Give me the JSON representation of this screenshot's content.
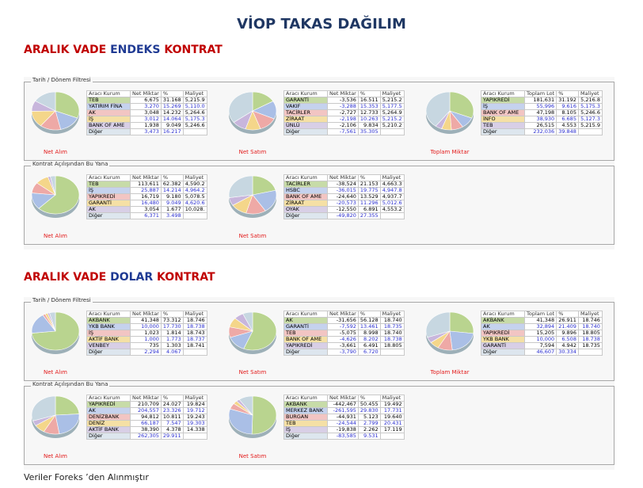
{
  "title": "VİOP TAKAS DAĞILIM",
  "footer": "Veriler Foreks ’den Alınmıştır",
  "sections": [
    {
      "heading": {
        "w1": "ARALIK VADE",
        "w2": "ENDEKS",
        "w3": "KONTRAT"
      },
      "groups": [
        {
          "legend": "Tarih / Dönem Filtresi",
          "cells": [
            {
              "label": "Net Alım",
              "headers": [
                "Aracı Kurum",
                "Net Miktar",
                "%",
                "Maliyet"
              ],
              "rows": [
                [
                  "TEB",
                  "6,675",
                  "31.168",
                  "5,215.9"
                ],
                [
                  "YATIRIM FİNA",
                  "3,270",
                  "15.269",
                  "5,110.0"
                ],
                [
                  "AK",
                  "3,048",
                  "14.232",
                  "5,264.6"
                ],
                [
                  "İŞ",
                  "3,012",
                  "14.064",
                  "5,175.3"
                ],
                [
                  "BANK OF AME",
                  "1,938",
                  "9.049",
                  "5,246.6"
                ],
                [
                  "Diğer",
                  "3,473",
                  "16.217",
                  ""
                ]
              ],
              "slices": [
                31.168,
                15.269,
                14.232,
                14.064,
                9.049,
                16.217
              ]
            },
            {
              "label": "Net Satım",
              "headers": [
                "Aracı Kurum",
                "Net Miktar",
                "%",
                "Maliyet"
              ],
              "rows": [
                [
                  "GARANTİ",
                  "-3,536",
                  "16.511",
                  "5,215.2"
                ],
                [
                  "VAKIF",
                  "-3,288",
                  "15.353",
                  "5,177.5"
                ],
                [
                  "TACİRLER",
                  "-2,727",
                  "12.733",
                  "5,264.9"
                ],
                [
                  "ZİRAAT",
                  "-2,198",
                  "10.263",
                  "5,215.2"
                ],
                [
                  "ÜNLÜ",
                  "-2,106",
                  "9.834",
                  "5,210.2"
                ],
                [
                  "Diğer",
                  "-7,561",
                  "35.305",
                  ""
                ]
              ],
              "slices": [
                16.511,
                15.353,
                12.733,
                10.263,
                9.834,
                35.305
              ]
            },
            {
              "label": "Toplam Miktar",
              "headers": [
                "Aracı Kurum",
                "Toplam Lot",
                "%",
                "Maliyet"
              ],
              "rows": [
                [
                  "YAPIKREDİ",
                  "181,631",
                  "31.192",
                  "5,216.8"
                ],
                [
                  "İŞ",
                  "55,996",
                  "9.616",
                  "5,175.3"
                ],
                [
                  "BANK OF AME",
                  "47,198",
                  "8.105",
                  "5,246.6"
                ],
                [
                  "İNFO",
                  "38,930",
                  "6.685",
                  "5,127.3"
                ],
                [
                  "TEB",
                  "26,515",
                  "4.553",
                  "5,215.9"
                ],
                [
                  "Diğer",
                  "232,036",
                  "39.848",
                  ""
                ]
              ],
              "slices": [
                31.192,
                9.616,
                8.105,
                6.685,
                4.553,
                39.848
              ]
            }
          ]
        },
        {
          "legend": "Kontrat Açılışından Bu Yana",
          "cells": [
            {
              "label": "Net Alım",
              "headers": [
                "Aracı Kurum",
                "Net Miktar",
                "%",
                "Maliyet"
              ],
              "rows": [
                [
                  "TEB",
                  "113,611",
                  "62.382",
                  "4,590.2"
                ],
                [
                  "İŞ",
                  "25,887",
                  "14.214",
                  "4,964.2"
                ],
                [
                  "YAPIKREDİ",
                  "16,719",
                  "9.180",
                  "5,078.5"
                ],
                [
                  "GARANTİ",
                  "16,480",
                  "9.049",
                  "4,620.6"
                ],
                [
                  "AK",
                  "3,054",
                  "1.677",
                  "10,028."
                ],
                [
                  "Diğer",
                  "6,371",
                  "3.498",
                  ""
                ]
              ],
              "slices": [
                62.382,
                14.214,
                9.18,
                9.049,
                1.677,
                3.498
              ]
            },
            {
              "label": "Net Satım",
              "headers": [
                "Aracı Kurum",
                "Net Miktar",
                "%",
                "Maliyet"
              ],
              "rows": [
                [
                  "TACİRLER",
                  "-38,524",
                  "21.153",
                  "4,663.3"
                ],
                [
                  "HSBC",
                  "-36,015",
                  "19.775",
                  "4,947.8"
                ],
                [
                  "BANK OF AME",
                  "-24,640",
                  "13.529",
                  "4,937.7"
                ],
                [
                  "ZİRAAT",
                  "-20,573",
                  "11.296",
                  "5,012.6"
                ],
                [
                  "OYAK",
                  "-12,550",
                  "6.891",
                  "4,553.2"
                ],
                [
                  "Diğer",
                  "-49,820",
                  "27.355",
                  ""
                ]
              ],
              "slices": [
                21.153,
                19.775,
                13.529,
                11.296,
                6.891,
                27.355
              ]
            }
          ]
        }
      ]
    },
    {
      "heading": {
        "w1": "ARALIK VADE",
        "w2": "DOLAR",
        "w3": "KONTRAT"
      },
      "groups": [
        {
          "legend": "Tarih / Dönem Filtresi",
          "cells": [
            {
              "label": "Net Alım",
              "headers": [
                "Aracı Kurum",
                "Net Miktar",
                "%",
                "Maliyet"
              ],
              "rows": [
                [
                  "AKBANK",
                  "41,348",
                  "73.312",
                  "18.746"
                ],
                [
                  "YKB BANK",
                  "10,000",
                  "17.730",
                  "18.738"
                ],
                [
                  "İŞ",
                  "1,023",
                  "1.814",
                  "18.743"
                ],
                [
                  "AKTİF BANK",
                  "1,000",
                  "1.773",
                  "18.737"
                ],
                [
                  "VENBEY",
                  "735",
                  "1.303",
                  "18.741"
                ],
                [
                  "Diğer",
                  "2,294",
                  "4.067",
                  ""
                ]
              ],
              "slices": [
                73.312,
                17.73,
                1.814,
                1.773,
                1.303,
                4.067
              ]
            },
            {
              "label": "Net Satım",
              "headers": [
                "Aracı Kurum",
                "Net Miktar",
                "%",
                "Maliyet"
              ],
              "rows": [
                [
                  "AK",
                  "-31,656",
                  "56.128",
                  "18.740"
                ],
                [
                  "GARANTİ",
                  "-7,592",
                  "13.461",
                  "18.735"
                ],
                [
                  "TEB",
                  "-5,075",
                  "8.998",
                  "18.740"
                ],
                [
                  "BANK OF AME",
                  "-4,626",
                  "8.202",
                  "18.738"
                ],
                [
                  "YAPIKREDİ",
                  "-3,661",
                  "6.491",
                  "18.805"
                ],
                [
                  "Diğer",
                  "-3,790",
                  "6.720",
                  ""
                ]
              ],
              "slices": [
                56.128,
                13.461,
                8.998,
                8.202,
                6.491,
                6.72
              ]
            },
            {
              "label": "Toplam Miktar",
              "headers": [
                "Aracı Kurum",
                "Toplam Lot",
                "%",
                "Maliyet"
              ],
              "rows": [
                [
                  "AKBANK",
                  "41,348",
                  "26.911",
                  "18.746"
                ],
                [
                  "AK",
                  "32,894",
                  "21.409",
                  "18.740"
                ],
                [
                  "YAPIKREDİ",
                  "15,205",
                  "9.896",
                  "18.805"
                ],
                [
                  "YKB BANK",
                  "10,000",
                  "6.508",
                  "18.738"
                ],
                [
                  "GARANTİ",
                  "7,594",
                  "4.942",
                  "18.735"
                ],
                [
                  "Diğer",
                  "46,607",
                  "30.334",
                  ""
                ]
              ],
              "slices": [
                26.911,
                21.409,
                9.896,
                6.508,
                4.942,
                30.334
              ]
            }
          ]
        },
        {
          "legend": "Kontrat Açılışından Bu Yana",
          "cells": [
            {
              "label": "Net Alım",
              "headers": [
                "Aracı Kurum",
                "Net Miktar",
                "%",
                "Maliyet"
              ],
              "rows": [
                [
                  "YAPIKREDİ",
                  "210,709",
                  "24.027",
                  "19.824"
                ],
                [
                  "AK",
                  "204,557",
                  "23.326",
                  "19.712"
                ],
                [
                  "DENİZBANK",
                  "94,812",
                  "10.811",
                  "19.243"
                ],
                [
                  "DENİZ",
                  "66,187",
                  "7.547",
                  "19.303"
                ],
                [
                  "AKTİF BANK",
                  "38,390",
                  "4.378",
                  "14.338"
                ],
                [
                  "Diğer",
                  "262,305",
                  "29.911",
                  ""
                ]
              ],
              "slices": [
                24.027,
                23.326,
                10.811,
                7.547,
                4.378,
                29.911
              ]
            },
            {
              "label": "Net Satım",
              "headers": [
                "Aracı Kurum",
                "Net Miktar",
                "%",
                "Maliyet"
              ],
              "rows": [
                [
                  "AKBANK",
                  "-442,467",
                  "50.455",
                  "19.492"
                ],
                [
                  "MERKEZ BANK",
                  "-261,595",
                  "29.830",
                  "17.731"
                ],
                [
                  "BURGAN",
                  "-44,931",
                  "5.123",
                  "19.640"
                ],
                [
                  "TEB",
                  "-24,544",
                  "2.799",
                  "20.431"
                ],
                [
                  "İŞ",
                  "-19,838",
                  "2.262",
                  "17.119"
                ],
                [
                  "Diğer",
                  "-83,585",
                  "9.531",
                  ""
                ]
              ],
              "slices": [
                50.455,
                29.83,
                5.123,
                2.799,
                2.262,
                9.531
              ]
            }
          ]
        }
      ]
    }
  ],
  "colors": {
    "row_fills": [
      "#c7dba8",
      "#c5d2ee",
      "#f2c5c3",
      "#f5e0a5",
      "#d8cfe6",
      "#dde6ee"
    ],
    "pie_fills": [
      "#b9d48f",
      "#aabfe6",
      "#eea9a6",
      "#f4d68a",
      "#c8b6dc",
      "#c7d7e1"
    ],
    "value_blue": "#2b2fd0",
    "label_red": "#e31b1b",
    "heading_red": "#c00000",
    "heading_navy": "#1f3a93"
  }
}
